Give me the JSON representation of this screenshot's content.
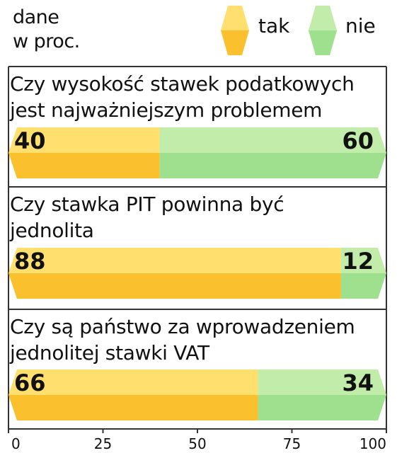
{
  "unit_label": [
    "dane",
    "w proc."
  ],
  "legend": [
    {
      "label": "tak",
      "color": "#fbc02d"
    },
    {
      "label": "nie",
      "color": "#9ee08e"
    }
  ],
  "chart_data": {
    "type": "bar",
    "orientation": "horizontal",
    "stacked": true,
    "categories": [
      [
        "Czy wysokość stawek podatkowych",
        "jest najważniejszym problemem"
      ],
      [
        "Czy stawka PIT powinna być",
        "jednolita"
      ],
      [
        "Czy są państwo za wprowadzeniem",
        "jednolitej stawki VAT"
      ]
    ],
    "series": [
      {
        "name": "tak",
        "values": [
          40,
          88,
          66
        ],
        "color": "#fbc02d",
        "color_light": "#ffdf6e"
      },
      {
        "name": "nie",
        "values": [
          60,
          12,
          34
        ],
        "color": "#9ee08e",
        "color_light": "#c2eca9"
      }
    ],
    "xlim": [
      0,
      100
    ],
    "xticks": [
      0,
      25,
      50,
      75,
      100
    ],
    "unit": "dane w proc.",
    "legend_position": "top-right"
  }
}
